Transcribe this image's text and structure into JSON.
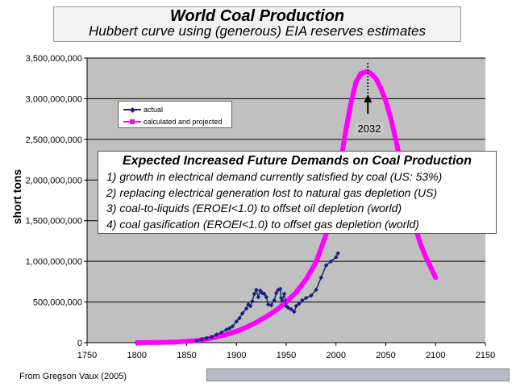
{
  "chart_data": {
    "type": "line",
    "title": "World Coal Production",
    "subtitle": "Hubbert curve using (generous) EIA reserves estimates",
    "xlabel": "",
    "ylabel": "short tons",
    "xlim": [
      1750,
      2150
    ],
    "ylim": [
      0,
      3500000000
    ],
    "x_ticks": [
      "1750",
      "1800",
      "1850",
      "1900",
      "1950",
      "2000",
      "2050",
      "2100",
      "2150"
    ],
    "y_ticks": [
      "0",
      "500,000,000",
      "1,000,000,000",
      "1,500,000,000",
      "2,000,000,000",
      "2,500,000,000",
      "3,000,000,000",
      "3,500,000,000"
    ],
    "grid": true,
    "legend_position": "top-left",
    "series": [
      {
        "name": "actual",
        "color": "#1a237e",
        "x": [
          1860,
          1865,
          1870,
          1875,
          1880,
          1885,
          1890,
          1893,
          1896,
          1900,
          1903,
          1906,
          1910,
          1912,
          1914,
          1916,
          1918,
          1920,
          1922,
          1924,
          1926,
          1928,
          1930,
          1932,
          1935,
          1938,
          1940,
          1942,
          1944,
          1945,
          1946,
          1948,
          1950,
          1952,
          1955,
          1958,
          1960,
          1963,
          1966,
          1970,
          1975,
          1980,
          1985,
          1990,
          1995,
          2000,
          2002
        ],
        "y": [
          20000000,
          40000000,
          55000000,
          70000000,
          100000000,
          125000000,
          160000000,
          175000000,
          200000000,
          260000000,
          300000000,
          360000000,
          420000000,
          470000000,
          450000000,
          510000000,
          600000000,
          650000000,
          560000000,
          640000000,
          610000000,
          600000000,
          560000000,
          470000000,
          460000000,
          520000000,
          610000000,
          650000000,
          660000000,
          550000000,
          520000000,
          600000000,
          450000000,
          430000000,
          410000000,
          380000000,
          450000000,
          480000000,
          520000000,
          550000000,
          580000000,
          650000000,
          800000000,
          950000000,
          1000000000,
          1050000000,
          1100000000
        ]
      },
      {
        "name": "calculated and projected",
        "color": "#ff00ff",
        "peak_year": 2032,
        "peak_value": 3330000000,
        "x": [
          1800,
          1820,
          1840,
          1860,
          1870,
          1880,
          1890,
          1900,
          1910,
          1920,
          1930,
          1940,
          1950,
          1960,
          1970,
          1980,
          1990,
          2000,
          2005,
          2010,
          2015,
          2020,
          2025,
          2030,
          2032,
          2035,
          2040,
          2045,
          2050,
          2055,
          2060,
          2065,
          2070,
          2075,
          2080,
          2085,
          2090,
          2095,
          2100
        ],
        "y": [
          0,
          2000000,
          8000000,
          25000000,
          45000000,
          70000000,
          100000000,
          140000000,
          190000000,
          250000000,
          320000000,
          400000000,
          500000000,
          620000000,
          780000000,
          990000000,
          1330000000,
          1890000000,
          2250000000,
          2620000000,
          2950000000,
          3200000000,
          3310000000,
          3330000000,
          3330000000,
          3310000000,
          3250000000,
          3130000000,
          2970000000,
          2760000000,
          2500000000,
          2210000000,
          1910000000,
          1630000000,
          1400000000,
          1210000000,
          1060000000,
          930000000,
          800000000
        ]
      }
    ]
  },
  "annotation": {
    "heading": "Expected Increased Future Demands on Coal Production",
    "items": [
      "1) growth in electrical demand currently satisfied by coal (US: 53%)",
      "2) replacing electrical generation lost to natural gas depletion (US)",
      "3) coal-to-liquids (EROEI<1.0) to offset oil depletion (world)",
      "4) coal gasification (EROEI<1.0) to offset gas depletion (world)"
    ]
  },
  "legend": {
    "actual": "actual",
    "projected": "calculated and projected"
  },
  "peak_label": "2032",
  "source": "From Gregson Vaux (2005)",
  "colors": {
    "plot_bg": "#c0c0c0",
    "actual": "#1a237e",
    "projected": "#ff00ff"
  }
}
